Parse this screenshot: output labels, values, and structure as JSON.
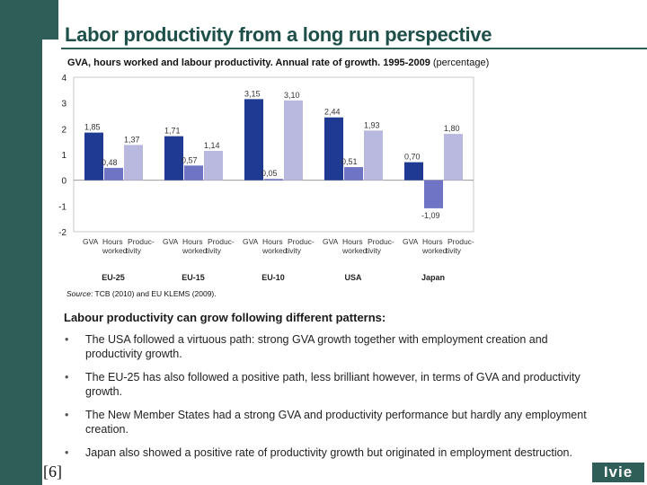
{
  "slide": {
    "title": "Labor productivity from a long run perspective",
    "chart_subtitle_bold": "GVA, hours worked and labour productivity. Annual rate of growth. 1995-2009",
    "chart_subtitle_light": "(percentage)",
    "source_label": "Source",
    "source_text": ": TCB (2010) and EU KLEMS (2009).",
    "section_heading": "Labour productivity can grow following different patterns:",
    "bullet_char": "•",
    "bullets": [
      "The USA followed a virtuous path: strong GVA growth together with employment creation and productivity growth.",
      "The EU-25 has also followed a positive path, less brilliant however, in terms of GVA and productivity growth.",
      "The New Member States had a strong GVA and productivity performance but hardly any employment creation.",
      "Japan also showed a positive rate of productivity growth but originated in employment destruction."
    ],
    "page_number": "[6]",
    "logo_text": "Ivie"
  },
  "colors": {
    "sidebar": "#2f5d57",
    "title": "#1e4f49",
    "gva_bar": "#1f3a93",
    "hours_bar": "#6f74c4",
    "productivity_bar": "#b9b9e0"
  },
  "chart_data": {
    "type": "bar",
    "ylim": [
      -2,
      4
    ],
    "yticks": [
      "-2",
      "-1",
      "0",
      "1",
      "2",
      "3",
      "4"
    ],
    "groups": [
      {
        "name": "EU-25",
        "labels": [
          "GVA",
          "Hours worked",
          "Produc-tivity"
        ],
        "values": [
          1.85,
          0.48,
          1.37
        ],
        "value_labels": [
          "1,85",
          "0,48",
          "1,37"
        ]
      },
      {
        "name": "EU-15",
        "labels": [
          "GVA",
          "Hours worked",
          "Produc-tivity"
        ],
        "values": [
          1.71,
          0.57,
          1.14
        ],
        "value_labels": [
          "1,71",
          "0,57",
          "1,14"
        ]
      },
      {
        "name": "EU-10",
        "labels": [
          "GVA",
          "Hours worked",
          "Produc-tivity"
        ],
        "values": [
          3.15,
          0.05,
          3.1
        ],
        "value_labels": [
          "3,15",
          "0,05",
          "3,10"
        ]
      },
      {
        "name": "USA",
        "labels": [
          "GVA",
          "Hours worked",
          "Produc-tivity"
        ],
        "values": [
          2.44,
          0.51,
          1.93
        ],
        "value_labels": [
          "2,44",
          "0,51",
          "1,93"
        ]
      },
      {
        "name": "Japan",
        "labels": [
          "GVA",
          "Hours worked",
          "Produc-tivity"
        ],
        "values": [
          0.7,
          -1.09,
          1.8
        ],
        "value_labels": [
          "0,70",
          "-1,09",
          "1,80"
        ]
      }
    ],
    "grid": false
  }
}
